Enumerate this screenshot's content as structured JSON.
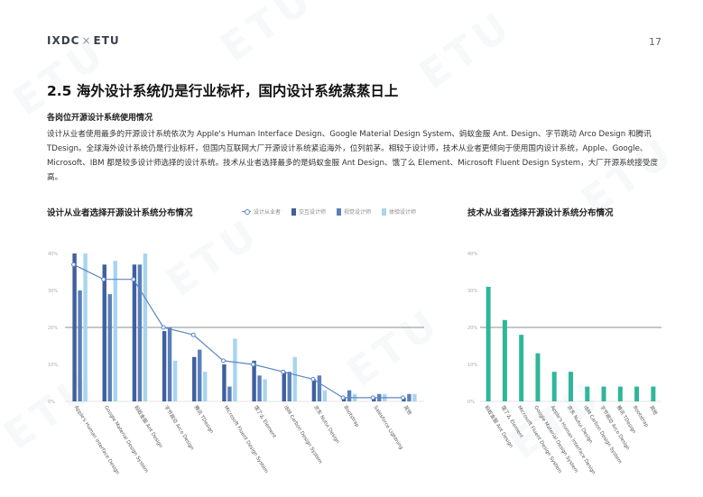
{
  "header": {
    "brand_left": "IXDC",
    "brand_sep": "×",
    "brand_right": "ETU",
    "page_number": "17"
  },
  "section": {
    "title": "2.5 海外设计系统仍是行业标杆，国内设计系统蒸蒸日上",
    "subtitle": "各岗位开源设计系统使用情况",
    "paragraph": "设计从业者使用最多的开源设计系统依次为 Apple's Human Interface Design、Google Material Design System、蚂蚁金服 Ant. Design、字节跳动 Arco Design 和腾讯 TDesign。全球海外设计系统仍是行业标杆，但国内互联网大厂开源设计系统紧追海外，位列前茅。相较于设计师，技术从业者更倾向于使用国内设计系统，Apple、Google、Microsoft、IBM 都是较多设计师选择的设计系统。技术从业者选择最多的是蚂蚁金服 Ant Design、饿了么 Element、Microsoft Fluent Design System，大厂开源系统接受度高。"
  },
  "colors": {
    "series1": "#3f5f9e",
    "series2": "#5b7fb9",
    "series3": "#8fb3dd",
    "series4": "#a8d4f0",
    "line": "#5b86c6",
    "tech": "#2eb79a"
  },
  "chart_left": {
    "title": "设计从业者选择开源设计系统分布情况",
    "legend": [
      "设计从业者",
      "交互设计师",
      "视觉设计师",
      "体验设计师"
    ],
    "chart_data": {
      "type": "bar",
      "categories": [
        "Apple's Human Interface Design",
        "Google Material Design System",
        "蚂蚁金服 Ant Design",
        "字节跳动 Arco Design",
        "腾讯 TDesign",
        "Microsoft Fluent Design System",
        "饿了么 Element",
        "IBM Carbon Design System",
        "京东 Nutui Design",
        "Bootstrap",
        "Salesforce Lightning",
        "其他"
      ],
      "series": [
        {
          "name": "设计从业者",
          "type": "line",
          "values": [
            37,
            33,
            33,
            20,
            18,
            11,
            10,
            8,
            6,
            1,
            1,
            1
          ]
        },
        {
          "name": "交互设计师",
          "values": [
            40,
            37,
            37,
            19,
            12,
            10,
            11,
            8,
            6,
            1,
            1,
            1
          ]
        },
        {
          "name": "视觉设计师",
          "values": [
            30,
            29,
            37,
            20,
            14,
            4,
            7,
            8,
            7,
            3,
            2,
            2
          ]
        },
        {
          "name": "体验设计师",
          "values": [
            40,
            38,
            40,
            11,
            8,
            17,
            6,
            12,
            3,
            2,
            2,
            2
          ]
        }
      ],
      "ytick_labels": [
        "0%",
        "10%",
        "20%",
        "30%",
        "40%"
      ],
      "ylim": [
        0,
        40
      ],
      "reference_line": 20
    }
  },
  "chart_right": {
    "title": "技术从业者选择开源设计系统分布情况",
    "chart_data": {
      "type": "bar",
      "categories": [
        "蚂蚁金服 Ant Design",
        "饿了么 Element",
        "Microsoft Fluent Design System",
        "Google Material Design System",
        "Apple's Human Interface Design",
        "京东 Nutui Design",
        "IBM Carbon Design System",
        "字节跳动 Arco Design",
        "腾讯 TDesign",
        "Bootstrap",
        "其他"
      ],
      "values": [
        31,
        22,
        18,
        13,
        8,
        8,
        4,
        4,
        4,
        4,
        4
      ],
      "ytick_labels": [
        "0%",
        "10%",
        "20%",
        "30%",
        "40%"
      ],
      "ylim": [
        0,
        40
      ],
      "reference_line": 20
    }
  }
}
